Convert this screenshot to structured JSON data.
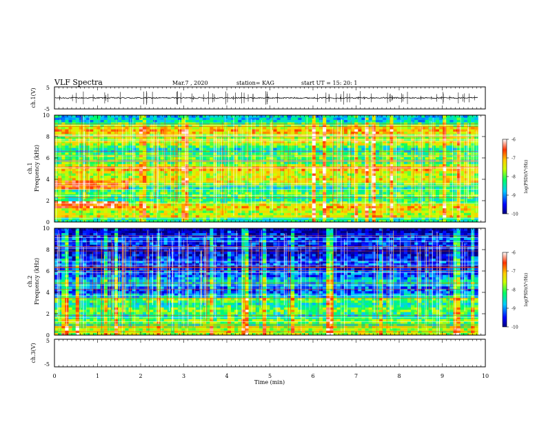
{
  "header": {
    "title": "VLF Spectra",
    "date": "Mar.7  , 2020",
    "station": "station= KAG",
    "start_ut": "start  UT  =    15: 20: 1"
  },
  "chart_data": [
    {
      "type": "line",
      "name": "ch.1 waveform",
      "ylabel": "ch.1(V)",
      "ylim": [
        -5,
        5
      ],
      "yticks": [
        "5",
        "-5"
      ],
      "trace_level_v": 0
    },
    {
      "type": "heatmap",
      "name": "ch.1 spectrogram",
      "ylabel_top": "ch.1",
      "ylabel": "Frequency  (kHz)",
      "ylim": [
        0,
        10
      ],
      "yticks": [
        "0",
        "2",
        "4",
        "6",
        "8",
        "10"
      ],
      "xlim": [
        0,
        10
      ],
      "data_end_min": 9.83,
      "colorbar": {
        "label": "log(PSD)(V²/Hz)",
        "range": [
          -10,
          -6
        ],
        "ticks": [
          "-6",
          "-7",
          "-8",
          "-9",
          "-10"
        ],
        "colormap": [
          "#000080",
          "#0000ff",
          "#00ccff",
          "#00ff66",
          "#ccff00",
          "#ffcc00",
          "#ff3300",
          "#ffffff"
        ]
      },
      "enhanced_band": {
        "x_range_min": [
          0,
          1.7
        ],
        "freq_khz": [
          1.2,
          1.9
        ]
      }
    },
    {
      "type": "heatmap",
      "name": "ch.2 spectrogram",
      "ylabel_top": "ch.2",
      "ylabel": "Frequency  (kHz)",
      "ylim": [
        0,
        10
      ],
      "yticks": [
        "0",
        "2",
        "4",
        "6",
        "8",
        "10"
      ],
      "xlim": [
        0,
        10
      ],
      "data_end_min": 9.83,
      "colorbar": {
        "label": "log(PSD)(V²/Hz)",
        "range": [
          -10,
          -6
        ],
        "ticks": [
          "-6",
          "-7",
          "-8",
          "-9",
          "-10"
        ],
        "colormap": [
          "#000080",
          "#0000ff",
          "#00ccff",
          "#00ff66",
          "#ccff00",
          "#ffcc00",
          "#ff3300",
          "#ffffff"
        ]
      }
    },
    {
      "type": "line",
      "name": "ch.3 waveform",
      "ylabel": "ch.3(V)",
      "ylim": [
        -5,
        5
      ],
      "yticks": [
        "5",
        "-5"
      ]
    }
  ],
  "xaxis": {
    "label": "Time  (min)",
    "ticks": [
      "0",
      "1",
      "2",
      "3",
      "4",
      "5",
      "6",
      "7",
      "8",
      "9",
      "10"
    ],
    "range": [
      0,
      10
    ]
  }
}
